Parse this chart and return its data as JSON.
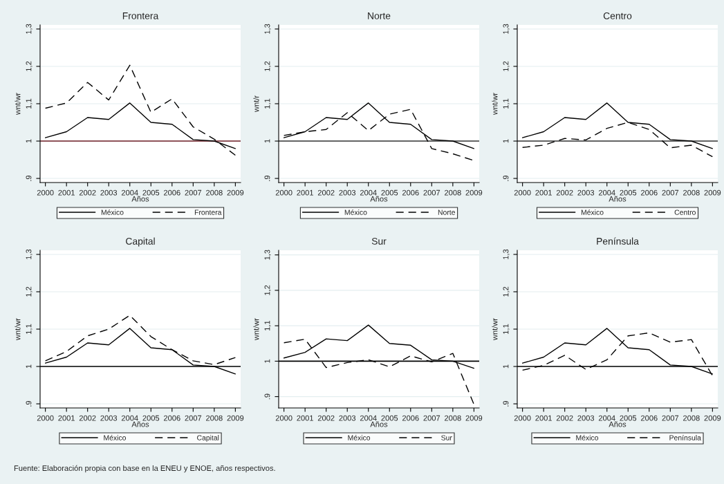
{
  "chart_data": [
    {
      "type": "line",
      "title": "Frontera",
      "xlabel": "Años",
      "ylabel": "wnt/wr",
      "x": [
        2000,
        2001,
        2002,
        2003,
        2004,
        2005,
        2006,
        2007,
        2008,
        2009
      ],
      "xlim": [
        1999.75,
        2009.25
      ],
      "xticks": [
        2000,
        2001,
        2002,
        2003,
        2004,
        2005,
        2006,
        2007,
        2008,
        2009
      ],
      "ylim": [
        0.889,
        1.311
      ],
      "yticks": [
        {
          "value": 0.9,
          "label": ".9"
        },
        1,
        {
          "value": 1.1,
          "label": "1,1"
        },
        {
          "value": 1.2,
          "label": "1,2"
        },
        {
          "value": 1.3,
          "label": "1,3"
        }
      ],
      "grid": "y",
      "legend": "bottom",
      "ref_lines": [
        {
          "axis": "y",
          "value": 1,
          "color": "#6e1c24"
        }
      ],
      "series": [
        {
          "name": "México",
          "color": "#000000",
          "line_style": "solid",
          "values": [
            1.009,
            1.025,
            1.063,
            1.058,
            1.102,
            1.05,
            1.045,
            1.004,
            1.0,
            0.98
          ]
        },
        {
          "name": "Frontera",
          "color": "#000000",
          "line_style": "dashed",
          "values": [
            1.088,
            1.102,
            1.157,
            1.11,
            1.203,
            1.077,
            1.113,
            1.038,
            1.005,
            0.962
          ]
        }
      ],
      "annotations": [
        "Fuente: Elaboración propia con base en la ENEU y ENOE, años respectivos."
      ]
    },
    {
      "type": "line",
      "title": "Norte",
      "xlabel": "Años",
      "ylabel": "wnt/r",
      "x": [
        2000,
        2001,
        2002,
        2003,
        2004,
        2005,
        2006,
        2007,
        2008,
        2009
      ],
      "xlim": [
        1999.75,
        2009.25
      ],
      "xticks": [
        2000,
        2001,
        2002,
        2003,
        2004,
        2005,
        2006,
        2007,
        2008,
        2009
      ],
      "ylim": [
        0.889,
        1.311
      ],
      "yticks": [
        {
          "value": 0.9,
          "label": ".9"
        },
        1,
        {
          "value": 1.1,
          "label": "1,1"
        },
        {
          "value": 1.2,
          "label": "1,2"
        },
        {
          "value": 1.3,
          "label": "1,3"
        }
      ],
      "grid": "y",
      "legend": "bottom",
      "ref_lines": [
        {
          "axis": "y",
          "value": 1,
          "color": "#333333"
        }
      ],
      "series": [
        {
          "name": "México",
          "color": "#000000",
          "line_style": "solid",
          "values": [
            1.009,
            1.025,
            1.063,
            1.058,
            1.102,
            1.05,
            1.045,
            1.004,
            1.0,
            0.98
          ]
        },
        {
          "name": "Norte",
          "color": "#000000",
          "line_style": "dashed",
          "values": [
            1.015,
            1.025,
            1.031,
            1.076,
            1.028,
            1.072,
            1.085,
            0.98,
            0.966,
            0.948
          ]
        }
      ]
    },
    {
      "type": "line",
      "title": "Centro",
      "xlabel": "Años",
      "ylabel": "wnt/wr",
      "x": [
        2000,
        2001,
        2002,
        2003,
        2004,
        2005,
        2006,
        2007,
        2008,
        2009
      ],
      "xlim": [
        1999.75,
        2009.25
      ],
      "xticks": [
        2000,
        2001,
        2002,
        2003,
        2004,
        2005,
        2006,
        2007,
        2008,
        2009
      ],
      "ylim": [
        0.889,
        1.311
      ],
      "yticks": [
        {
          "value": 0.9,
          "label": ".9"
        },
        1,
        {
          "value": 1.1,
          "label": "1,1"
        },
        {
          "value": 1.2,
          "label": "1,2"
        },
        {
          "value": 1.3,
          "label": "1,3"
        }
      ],
      "grid": "y",
      "legend": "bottom",
      "ref_lines": [
        {
          "axis": "y",
          "value": 1,
          "color": "#333333"
        }
      ],
      "series": [
        {
          "name": "México",
          "color": "#000000",
          "line_style": "solid",
          "values": [
            1.009,
            1.025,
            1.063,
            1.058,
            1.102,
            1.05,
            1.045,
            1.004,
            1.0,
            0.98
          ]
        },
        {
          "name": "Centro",
          "color": "#000000",
          "line_style": "dashed",
          "values": [
            0.983,
            0.989,
            1.007,
            1.003,
            1.034,
            1.05,
            1.031,
            0.982,
            0.989,
            0.958
          ]
        }
      ]
    },
    {
      "type": "line",
      "title": "Capital",
      "xlabel": "Años",
      "ylabel": "wnt/wr",
      "x": [
        2000,
        2001,
        2002,
        2003,
        2004,
        2005,
        2006,
        2007,
        2008,
        2009
      ],
      "xlim": [
        1999.75,
        2009.25
      ],
      "xticks": [
        2000,
        2001,
        2002,
        2003,
        2004,
        2005,
        2006,
        2007,
        2008,
        2009
      ],
      "ylim": [
        0.889,
        1.311
      ],
      "yticks": [
        {
          "value": 0.9,
          "label": ".9"
        },
        1,
        {
          "value": 1.1,
          "label": "1,1"
        },
        {
          "value": 1.2,
          "label": "1,2"
        },
        {
          "value": 1.3,
          "label": "1,3"
        }
      ],
      "grid": "y",
      "legend": "bottom",
      "ref_lines": [
        {
          "axis": "y",
          "value": 1,
          "color": "#000000"
        }
      ],
      "series": [
        {
          "name": "México",
          "color": "#000000",
          "line_style": "solid",
          "values": [
            1.009,
            1.025,
            1.063,
            1.058,
            1.102,
            1.05,
            1.045,
            1.004,
            1.0,
            0.98
          ]
        },
        {
          "name": "Capital",
          "color": "#000000",
          "line_style": "dashed",
          "values": [
            1.015,
            1.04,
            1.082,
            1.1,
            1.137,
            1.08,
            1.045,
            1.015,
            1.005,
            1.024
          ]
        }
      ]
    },
    {
      "type": "line",
      "title": "Sur",
      "xlabel": "Años",
      "ylabel": "wnt/wr",
      "x": [
        2000,
        2001,
        2002,
        2003,
        2004,
        2005,
        2006,
        2007,
        2008,
        2009
      ],
      "xlim": [
        1999.75,
        2009.25
      ],
      "xticks": [
        2000,
        2001,
        2002,
        2003,
        2004,
        2005,
        2006,
        2007,
        2008,
        2009
      ],
      "ylim": [
        0.868,
        1.313
      ],
      "yticks": [
        {
          "value": 0.9,
          "label": ".9"
        },
        1,
        {
          "value": 1.1,
          "label": "1,1"
        },
        {
          "value": 1.2,
          "label": "1,2"
        },
        {
          "value": 1.3,
          "label": "1,3"
        }
      ],
      "grid": "y",
      "legend": "bottom",
      "ref_lines": [
        {
          "axis": "y",
          "value": 1,
          "color": "#000000"
        }
      ],
      "series": [
        {
          "name": "México",
          "color": "#000000",
          "line_style": "solid",
          "values": [
            1.009,
            1.025,
            1.063,
            1.058,
            1.102,
            1.05,
            1.045,
            1.004,
            1.0,
            0.98
          ]
        },
        {
          "name": "Sur",
          "color": "#000000",
          "line_style": "dashed",
          "values": [
            1.052,
            1.062,
            0.982,
            0.996,
            1.004,
            0.984,
            1.015,
            0.998,
            1.022,
            0.878
          ]
        }
      ]
    },
    {
      "type": "line",
      "title": "Península",
      "xlabel": "Años",
      "ylabel": "wnt/wr",
      "x": [
        2000,
        2001,
        2002,
        2003,
        2004,
        2005,
        2006,
        2007,
        2008,
        2009
      ],
      "xlim": [
        1999.75,
        2009.25
      ],
      "xticks": [
        2000,
        2001,
        2002,
        2003,
        2004,
        2005,
        2006,
        2007,
        2008,
        2009
      ],
      "ylim": [
        0.889,
        1.311
      ],
      "yticks": [
        {
          "value": 0.9,
          "label": ".9"
        },
        1,
        {
          "value": 1.1,
          "label": "1,1"
        },
        {
          "value": 1.2,
          "label": "1,2"
        },
        {
          "value": 1.3,
          "label": "1,3"
        }
      ],
      "grid": "y",
      "legend": "bottom",
      "ref_lines": [
        {
          "axis": "y",
          "value": 1,
          "color": "#000000"
        }
      ],
      "series": [
        {
          "name": "México",
          "color": "#000000",
          "line_style": "solid",
          "values": [
            1.009,
            1.025,
            1.063,
            1.058,
            1.102,
            1.05,
            1.045,
            1.004,
            1.0,
            0.98
          ]
        },
        {
          "name": "Península",
          "color": "#000000",
          "line_style": "dashed",
          "values": [
            0.99,
            1.003,
            1.03,
            0.992,
            1.018,
            1.082,
            1.09,
            1.065,
            1.072,
            0.975
          ]
        }
      ]
    }
  ]
}
